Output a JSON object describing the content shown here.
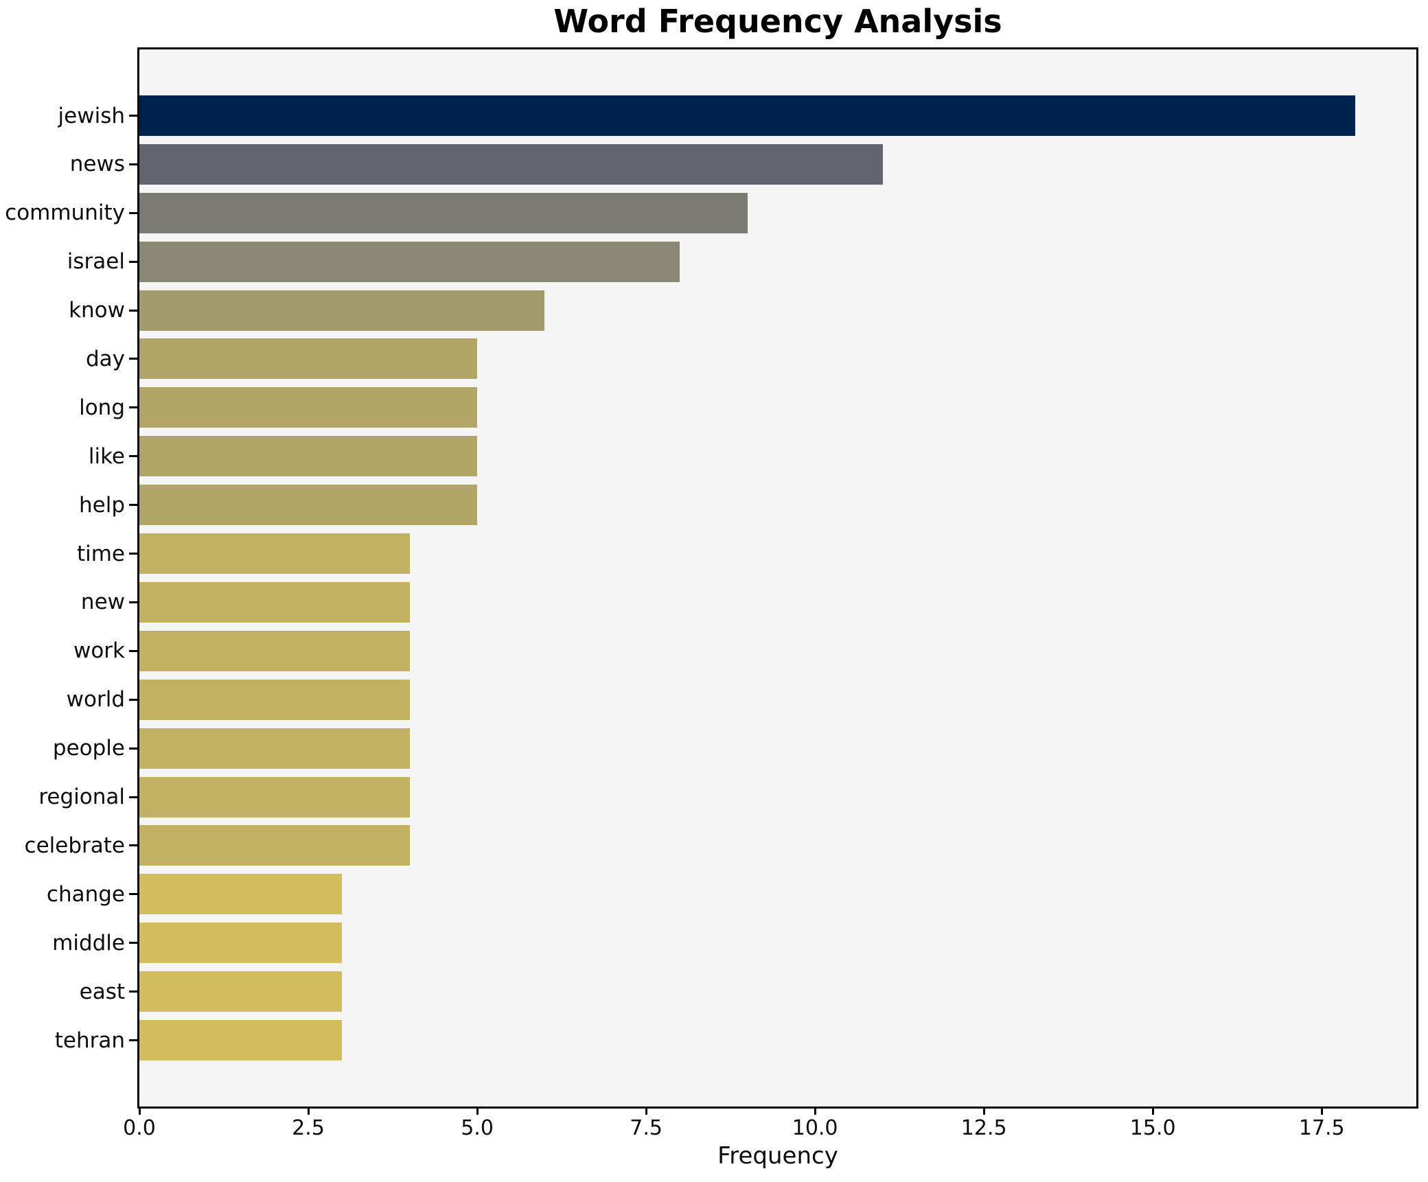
{
  "chart_data": {
    "type": "bar",
    "orientation": "horizontal",
    "title": "Word Frequency Analysis",
    "xlabel": "Frequency",
    "ylabel": "",
    "categories": [
      "jewish",
      "news",
      "community",
      "israel",
      "know",
      "day",
      "long",
      "like",
      "help",
      "time",
      "new",
      "work",
      "world",
      "people",
      "regional",
      "celebrate",
      "change",
      "middle",
      "east",
      "tehran"
    ],
    "values": [
      18,
      11,
      9,
      8,
      6,
      5,
      5,
      5,
      5,
      4,
      4,
      4,
      4,
      4,
      4,
      4,
      3,
      3,
      3,
      3
    ],
    "bar_colors": [
      "#00224e",
      "#62656f",
      "#7b7b73",
      "#8b8876",
      "#a49b6d",
      "#b1a667",
      "#b1a667",
      "#b1a667",
      "#b1a667",
      "#c2b162",
      "#c2b162",
      "#c2b162",
      "#c2b162",
      "#c2b162",
      "#c2b162",
      "#c2b162",
      "#d2be5e",
      "#d2be5e",
      "#d2be5e",
      "#d2be5e"
    ],
    "xlim": [
      0,
      18.9
    ],
    "x_ticks": [
      0,
      2.5,
      5,
      7.5,
      10,
      12.5,
      15,
      17.5
    ],
    "x_tick_labels": [
      "0.0",
      "2.5",
      "5.0",
      "7.5",
      "10.0",
      "12.5",
      "15.0",
      "17.5"
    ],
    "grid": false,
    "legend": "none",
    "plot_background": "#f5f5f6",
    "figure_background": "#ffffff",
    "spine_color": "#000000"
  }
}
